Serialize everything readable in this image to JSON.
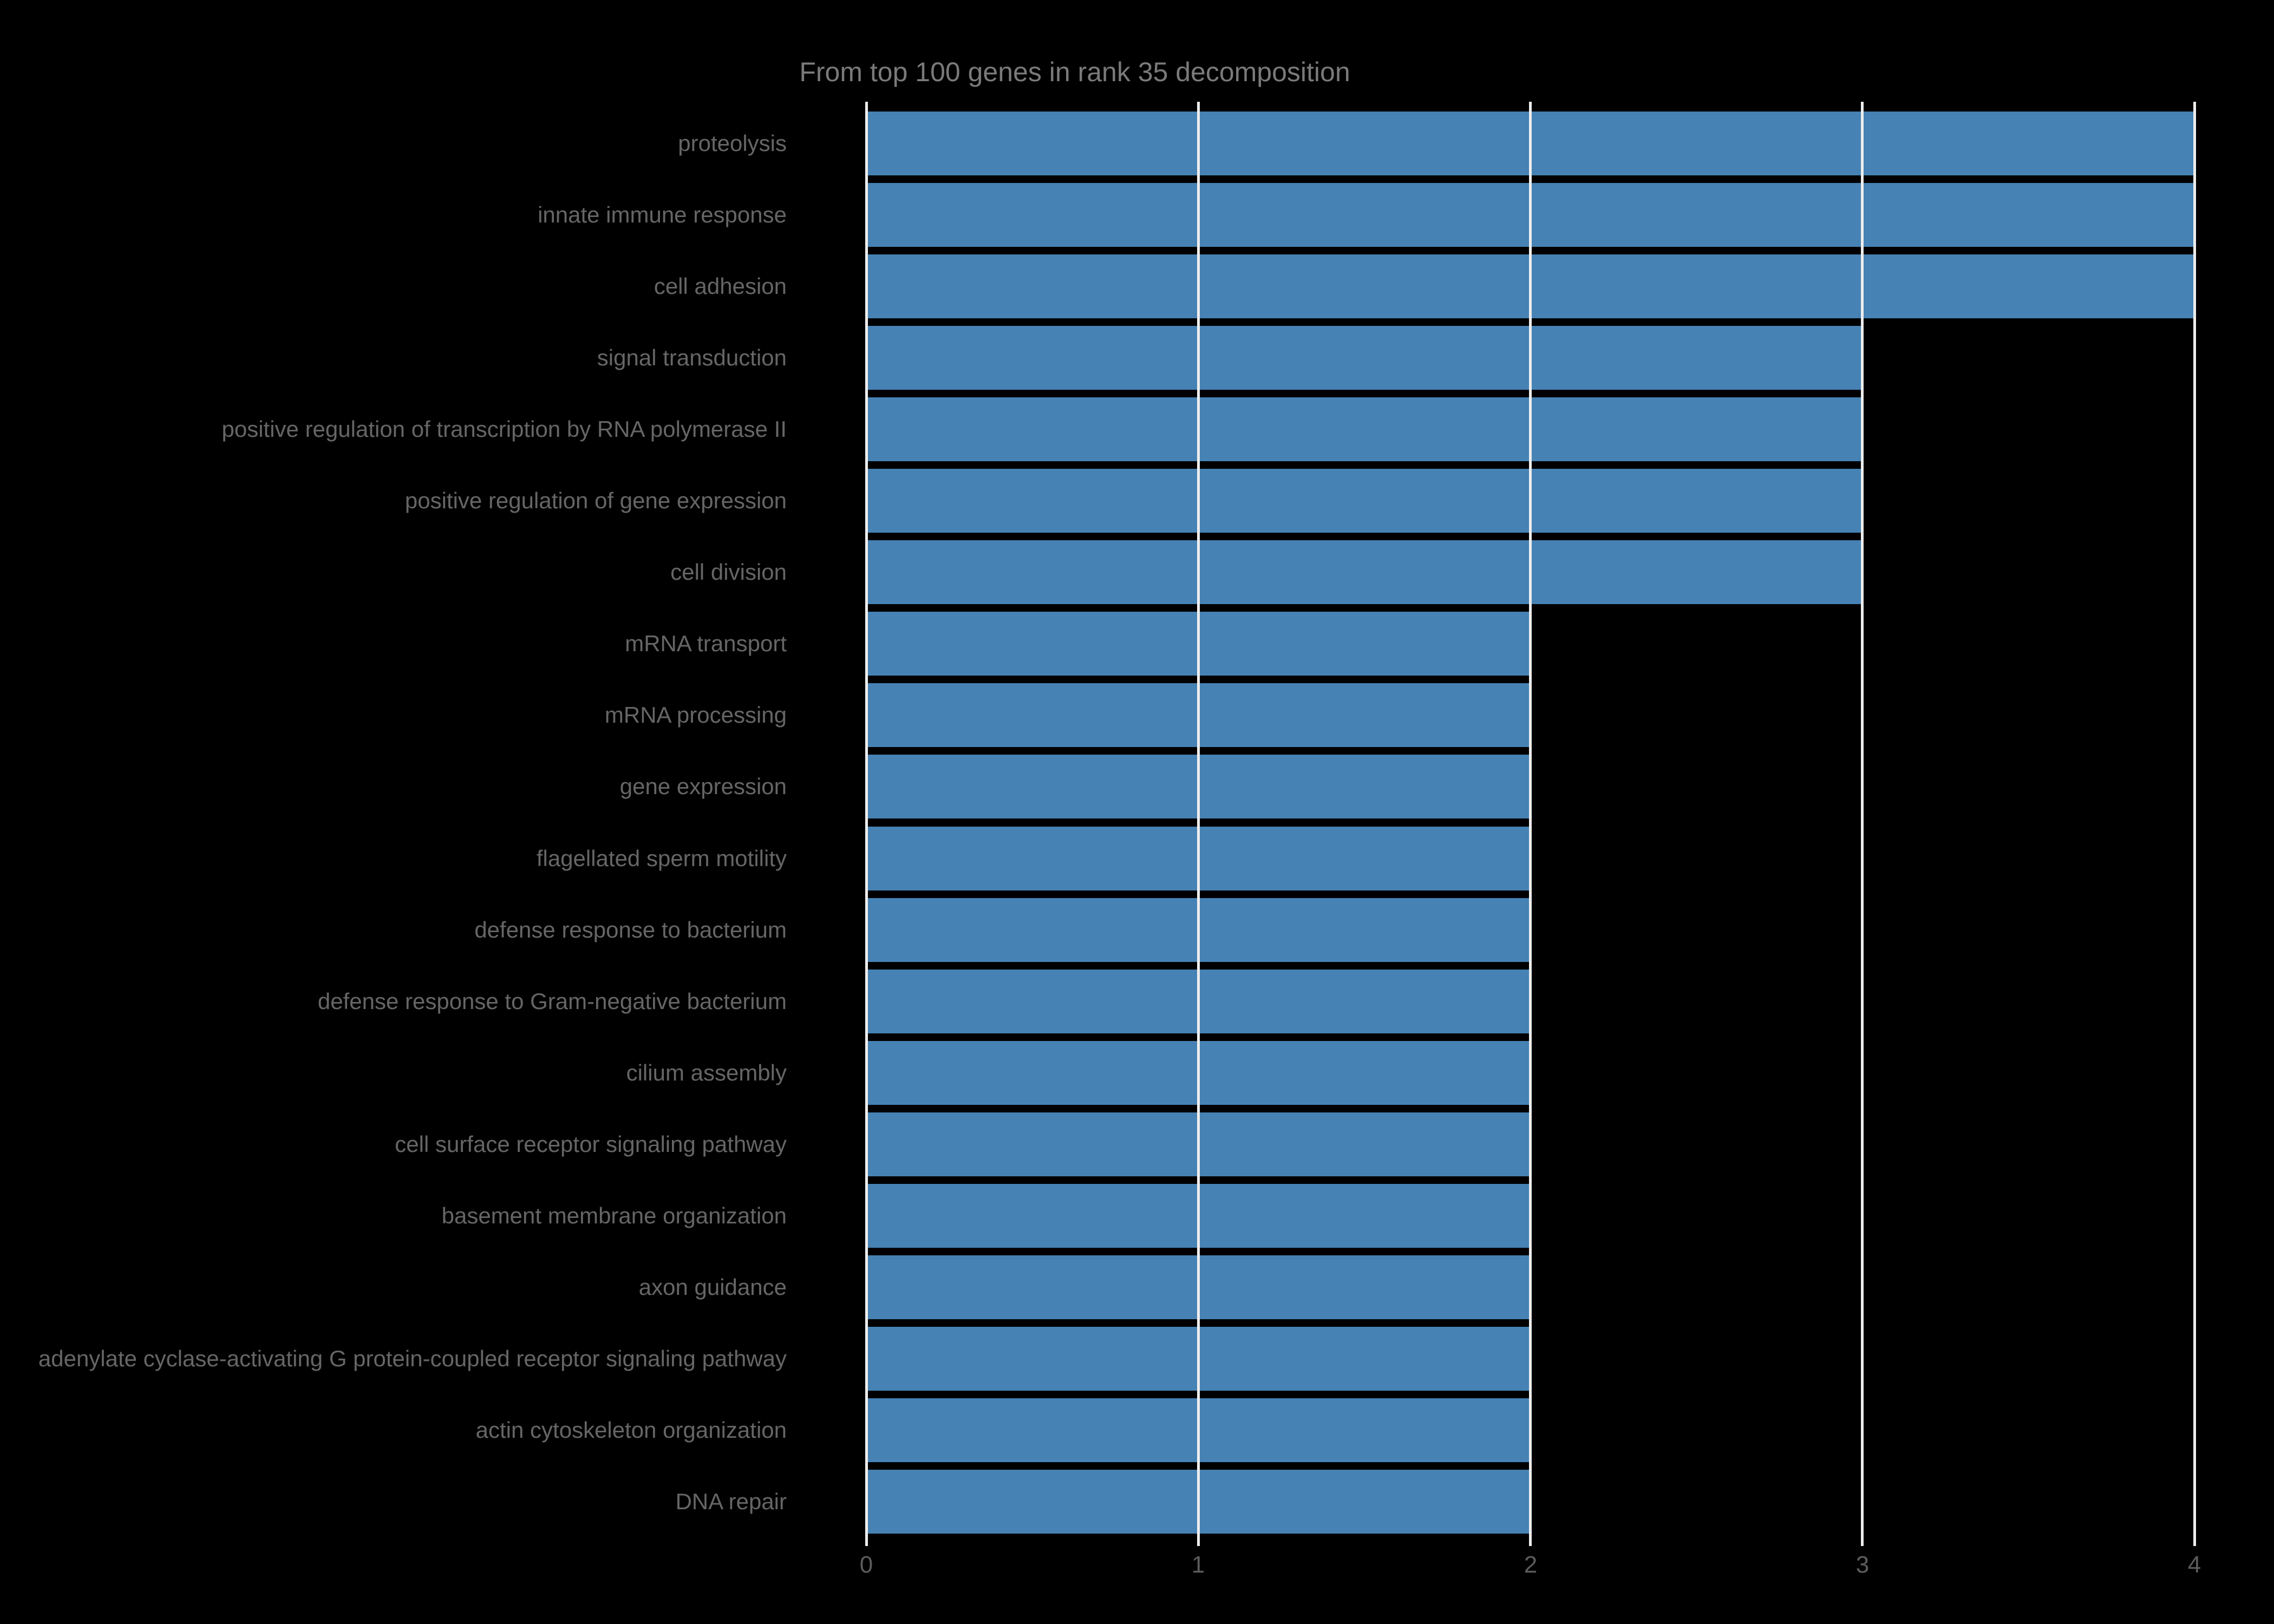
{
  "chart_data": {
    "type": "bar",
    "orientation": "horizontal",
    "title": "From top 100 genes in rank 35 decomposition",
    "categories": [
      "proteolysis",
      "innate immune response",
      "cell adhesion",
      "signal transduction",
      "positive regulation of transcription by RNA polymerase II",
      "positive regulation of gene expression",
      "cell division",
      "mRNA transport",
      "mRNA processing",
      "gene expression",
      "flagellated sperm motility",
      "defense response to bacterium",
      "defense response to Gram-negative bacterium",
      "cilium assembly",
      "cell surface receptor signaling pathway",
      "basement membrane organization",
      "axon guidance",
      "adenylate cyclase-activating G protein-coupled receptor signaling pathway",
      "actin cytoskeleton organization",
      "DNA repair"
    ],
    "values": [
      4,
      4,
      4,
      3,
      3,
      3,
      3,
      2,
      2,
      2,
      2,
      2,
      2,
      2,
      2,
      2,
      2,
      2,
      2,
      2
    ],
    "xlabel": "",
    "ylabel": "",
    "xlim": [
      0,
      4
    ],
    "xticks": [
      "0",
      "1",
      "2",
      "3",
      "4"
    ],
    "grid": "vertical gridlines at each x tick, drawn over bars",
    "legend": "none",
    "colors": {
      "background": "#000000",
      "bar": "#4682B4",
      "grid": "#ededed",
      "title_text": "#7a7a7a",
      "label_text": "#666666",
      "tick_text": "#5c5c5c"
    }
  }
}
